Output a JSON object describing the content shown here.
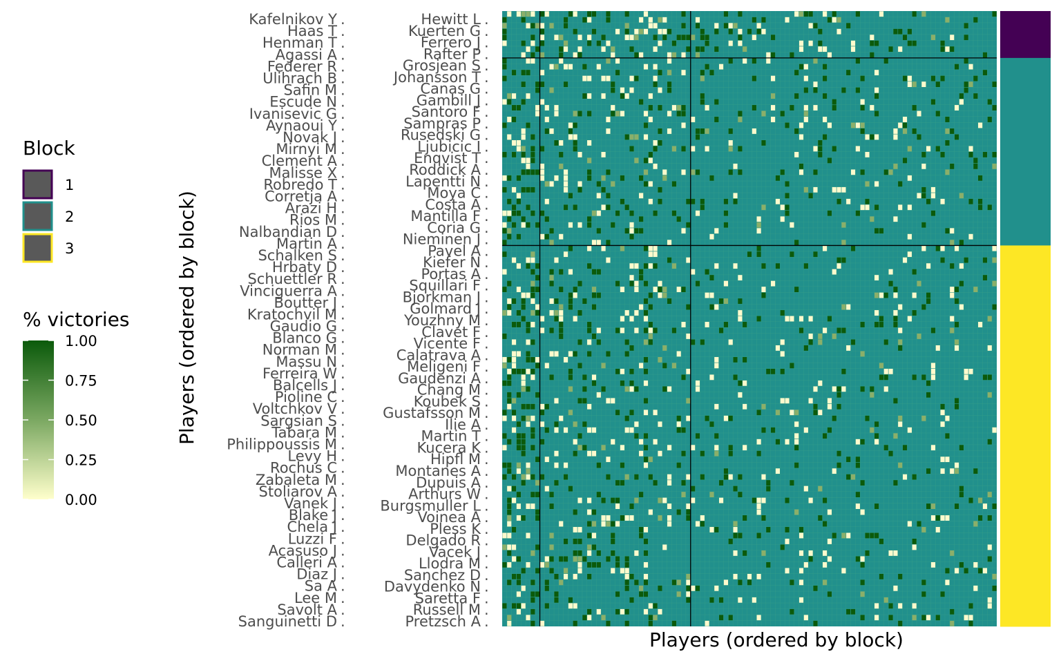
{
  "chart_data": {
    "type": "heatmap",
    "xlabel": "Players (ordered by block)",
    "ylabel": "Players (ordered by block)",
    "left_labels": [
      "Kafelnikov Y",
      "Haas T",
      "Henman T",
      "Agassi A",
      "Federer R",
      "Ulihrach B",
      "Safin M",
      "Escude N",
      "Ivanisevic G",
      "Aynaoui Y",
      "Novak J",
      "Mirnyi M",
      "Clement A",
      "Malisse X",
      "Robredo T",
      "Corretja A",
      "Arazi H",
      "Rios M",
      "Nalbandian D",
      "Martin A",
      "Schalken S",
      "Hrbaty D",
      "Schuettler R",
      "Vinciguerra A",
      "Boutter J",
      "Kratochvil M",
      "Gaudio G",
      "Blanco G",
      "Norman M",
      "Massu N",
      "Ferreira W",
      "Balcells J",
      "Pioline C",
      "Voltchkov V",
      "Sargsian S",
      "Tabara M",
      "Philippoussis M",
      "Levy H",
      "Rochus C",
      "Zabaleta M",
      "Stoliarov A",
      "Vanek J",
      "Blake J",
      "Chela J",
      "Luzzi F",
      "Acasuso J",
      "Calleri A",
      "Diaz J",
      "Sa A",
      "Lee M",
      "Savolt A",
      "Sanguinetti D"
    ],
    "right_labels": [
      "Hewitt L",
      "Kuerten G",
      "Ferrero J",
      "Rafter P",
      "Grosjean S",
      "Johansson T",
      "Canas G",
      "Gambill J",
      "Santoro F",
      "Sampras P",
      "Rusedski G",
      "Ljubicic I",
      "Enqvist T",
      "Roddick A",
      "Lapentti N",
      "Moya C",
      "Costa A",
      "Mantilla F",
      "Coria G",
      "Nieminen J",
      "Pavel A",
      "Kiefer N",
      "Portas A",
      "Squillari F",
      "Bjorkman J",
      "Golmard J",
      "Youzhny M",
      "Clavet F",
      "Vicente F",
      "Calatrava A",
      "Meligeni F",
      "Gaudenzi A",
      "Chang M",
      "Koubek S",
      "Gustafsson M",
      "Ilie A",
      "Martin T",
      "Kucera K",
      "Hipfl M",
      "Montanes A",
      "Dupuis A",
      "Arthurs W",
      "Burgsmuller L",
      "Voinea A",
      "Pless K",
      "Delgado R",
      "Vacek J",
      "Llodra M",
      "Sanchez D",
      "Davydenko N",
      "Saretta F",
      "Russell M",
      "Pretzsch A"
    ],
    "n_players": 105,
    "blocks": [
      {
        "name": "1",
        "size": 8,
        "color": "#440154"
      },
      {
        "name": "2",
        "size": 32,
        "color": "#21908C"
      },
      {
        "name": "3",
        "size": 65,
        "color": "#FDE725"
      }
    ],
    "base_color": "#21908C",
    "cell_stats": {
      "win_color": "#0B5A0B",
      "loss_color": "#FFFACD",
      "mid_color": "#8BAF6A",
      "note": "sparse pairwise victory matrix"
    },
    "legend": {
      "block_title": "Block",
      "block_items": [
        "1",
        "2",
        "3"
      ],
      "victories_title": "% victories",
      "victories_ticks": [
        "1.00",
        "0.75",
        "0.50",
        "0.25",
        "0.00"
      ],
      "gradient_top": "#0B5A0B",
      "gradient_bottom": "#FFFFCC"
    }
  }
}
